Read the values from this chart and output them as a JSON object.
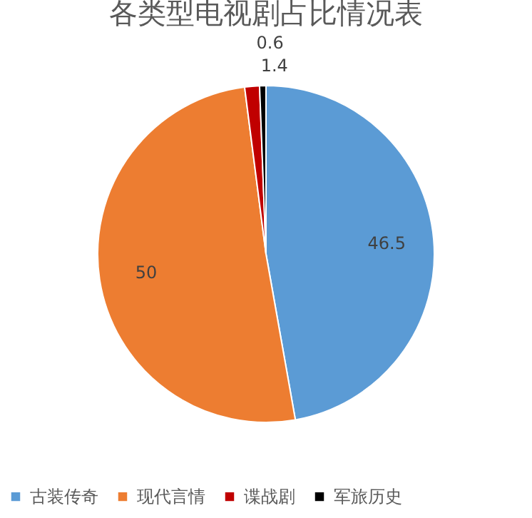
{
  "chart_data": {
    "type": "pie",
    "title": "各类型电视剧占比情况表",
    "categories": [
      "古装传奇",
      "现代言情",
      "谍战剧",
      "军旅历史"
    ],
    "values": [
      46.5,
      50,
      1.4,
      0.6
    ],
    "colors": [
      "#5b9bd5",
      "#ed7d31",
      "#c00000",
      "#000000"
    ],
    "data_labels": true,
    "legend": "bottom"
  }
}
